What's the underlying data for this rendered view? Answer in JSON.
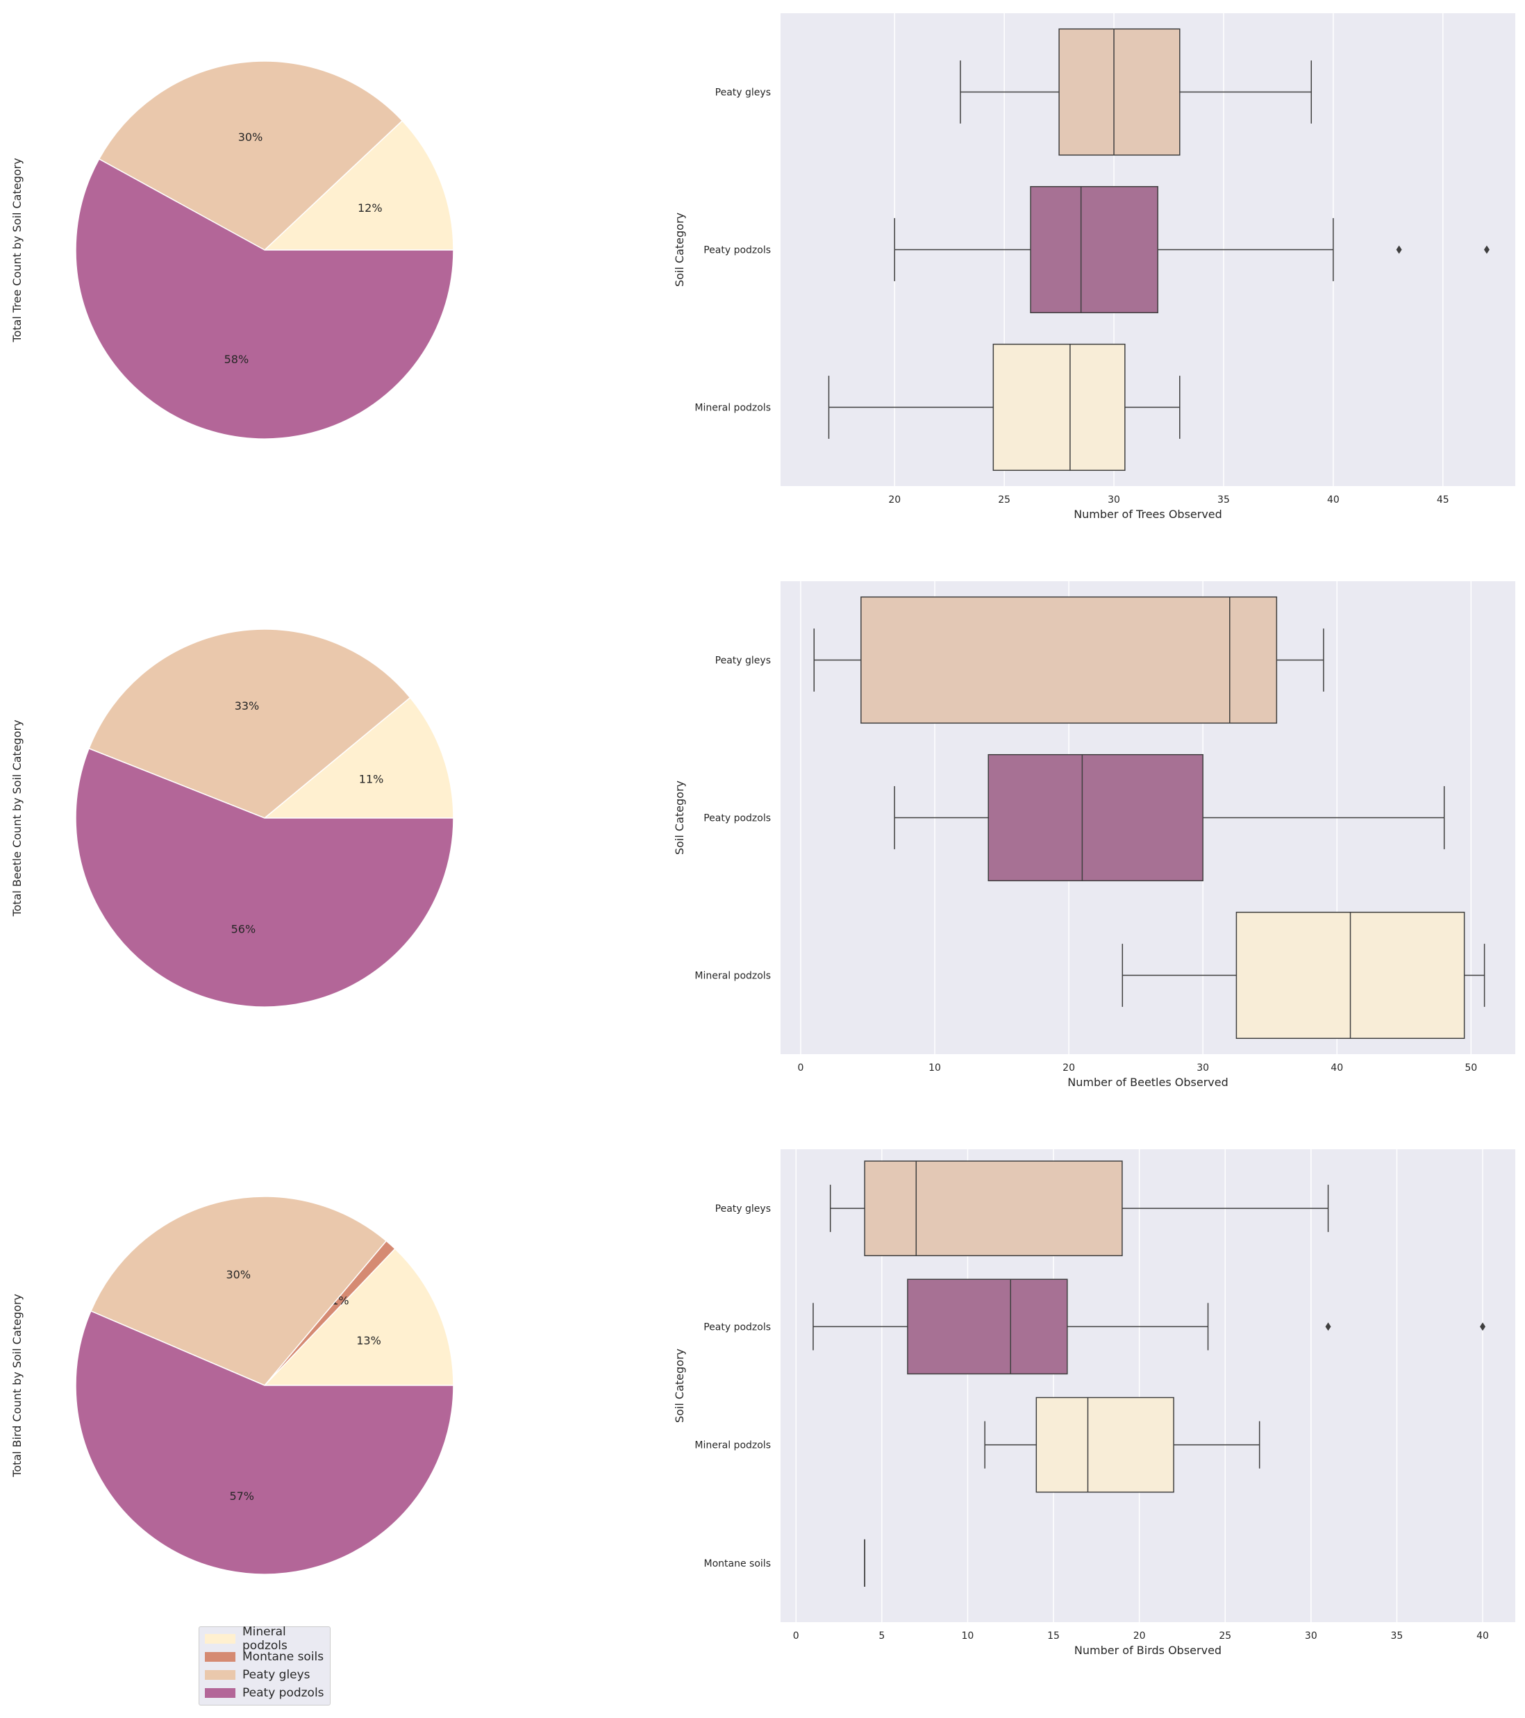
{
  "colors": {
    "Mineral podzols": "#fff0d0",
    "Montane soils": "#d58a72",
    "Peaty gleys": "#eac8ac",
    "Peaty podzols": "#b36698",
    "box_Mineral podzols": "#f8edd7",
    "box_Peaty gleys": "#e3c8b5",
    "box_Peaty podzols": "#a77194",
    "box_Montane soils": "#d58a72",
    "axes_bg": "#eaeaf2",
    "grid": "#ffffff",
    "line": "#3f3f3f"
  },
  "legend": {
    "items": [
      "Mineral podzols",
      "Montane soils",
      "Peaty gleys",
      "Peaty podzols"
    ]
  },
  "chart_data": [
    {
      "type": "pie",
      "ylabel": "Total Tree Count by Soil Category",
      "slices": [
        {
          "label": "Mineral podzols",
          "value": 12,
          "pct_label": "12%"
        },
        {
          "label": "Peaty gleys",
          "value": 30,
          "pct_label": "30%"
        },
        {
          "label": "Peaty podzols",
          "value": 58,
          "pct_label": "58%"
        }
      ]
    },
    {
      "type": "box",
      "xlabel": "Number of Trees Observed",
      "ylabel": "Soil Category",
      "xlim": [
        14.8,
        48.3
      ],
      "xticks": [
        20,
        25,
        30,
        35,
        40,
        45
      ],
      "grid": true,
      "categories": [
        "Peaty gleys",
        "Peaty podzols",
        "Mineral podzols"
      ],
      "boxes": [
        {
          "category": "Peaty gleys",
          "whislo": 23,
          "q1": 27.5,
          "med": 30,
          "q3": 33,
          "whishi": 39,
          "fliers": []
        },
        {
          "category": "Peaty podzols",
          "whislo": 20,
          "q1": 26.2,
          "med": 28.5,
          "q3": 32,
          "whishi": 40,
          "fliers": [
            43,
            47
          ]
        },
        {
          "category": "Mineral podzols",
          "whislo": 17,
          "q1": 24.5,
          "med": 28,
          "q3": 30.5,
          "whishi": 33,
          "fliers": []
        }
      ]
    },
    {
      "type": "pie",
      "ylabel": "Total Beetle Count by Soil Category",
      "slices": [
        {
          "label": "Mineral podzols",
          "value": 11,
          "pct_label": "11%"
        },
        {
          "label": "Peaty gleys",
          "value": 33,
          "pct_label": "33%"
        },
        {
          "label": "Peaty podzols",
          "value": 56,
          "pct_label": "56%"
        }
      ]
    },
    {
      "type": "box",
      "xlabel": "Number of Beetles Observed",
      "ylabel": "Soil Category",
      "xlim": [
        -1.5,
        53.3
      ],
      "xticks": [
        0,
        10,
        20,
        30,
        40,
        50
      ],
      "grid": true,
      "categories": [
        "Peaty gleys",
        "Peaty podzols",
        "Mineral podzols"
      ],
      "boxes": [
        {
          "category": "Peaty gleys",
          "whislo": 1,
          "q1": 4.5,
          "med": 32,
          "q3": 35.5,
          "whishi": 39,
          "fliers": []
        },
        {
          "category": "Peaty podzols",
          "whislo": 7,
          "q1": 14,
          "med": 21,
          "q3": 30,
          "whishi": 48,
          "fliers": []
        },
        {
          "category": "Mineral podzols",
          "whislo": 24,
          "q1": 32.5,
          "med": 41,
          "q3": 49.5,
          "whishi": 51,
          "fliers": []
        }
      ]
    },
    {
      "type": "pie",
      "ylabel": "Total Bird Count by Soil Category",
      "slices": [
        {
          "label": "Mineral podzols",
          "value": 13,
          "pct_label": "13%"
        },
        {
          "label": "Montane soils",
          "value": 1,
          "pct_label": "1%"
        },
        {
          "label": "Peaty gleys",
          "value": 30,
          "pct_label": "30%"
        },
        {
          "label": "Peaty podzols",
          "value": 57,
          "pct_label": "57%"
        }
      ]
    },
    {
      "type": "box",
      "xlabel": "Number of Birds Observed",
      "ylabel": "Soil Category",
      "xlim": [
        -0.9,
        41.9
      ],
      "xticks": [
        0,
        5,
        10,
        15,
        20,
        25,
        30,
        35,
        40
      ],
      "grid": true,
      "categories": [
        "Peaty gleys",
        "Peaty podzols",
        "Mineral podzols",
        "Montane soils"
      ],
      "boxes": [
        {
          "category": "Peaty gleys",
          "whislo": 2,
          "q1": 4,
          "med": 7,
          "q3": 19,
          "whishi": 31,
          "fliers": []
        },
        {
          "category": "Peaty podzols",
          "whislo": 1,
          "q1": 6.5,
          "med": 12.5,
          "q3": 15.8,
          "whishi": 24,
          "fliers": [
            31,
            40
          ]
        },
        {
          "category": "Mineral podzols",
          "whislo": 11,
          "q1": 14,
          "med": 17,
          "q3": 22,
          "whishi": 27,
          "fliers": []
        },
        {
          "category": "Montane soils",
          "whislo": 4,
          "q1": 4,
          "med": 4,
          "q3": 4,
          "whishi": 4,
          "fliers": []
        }
      ]
    }
  ]
}
